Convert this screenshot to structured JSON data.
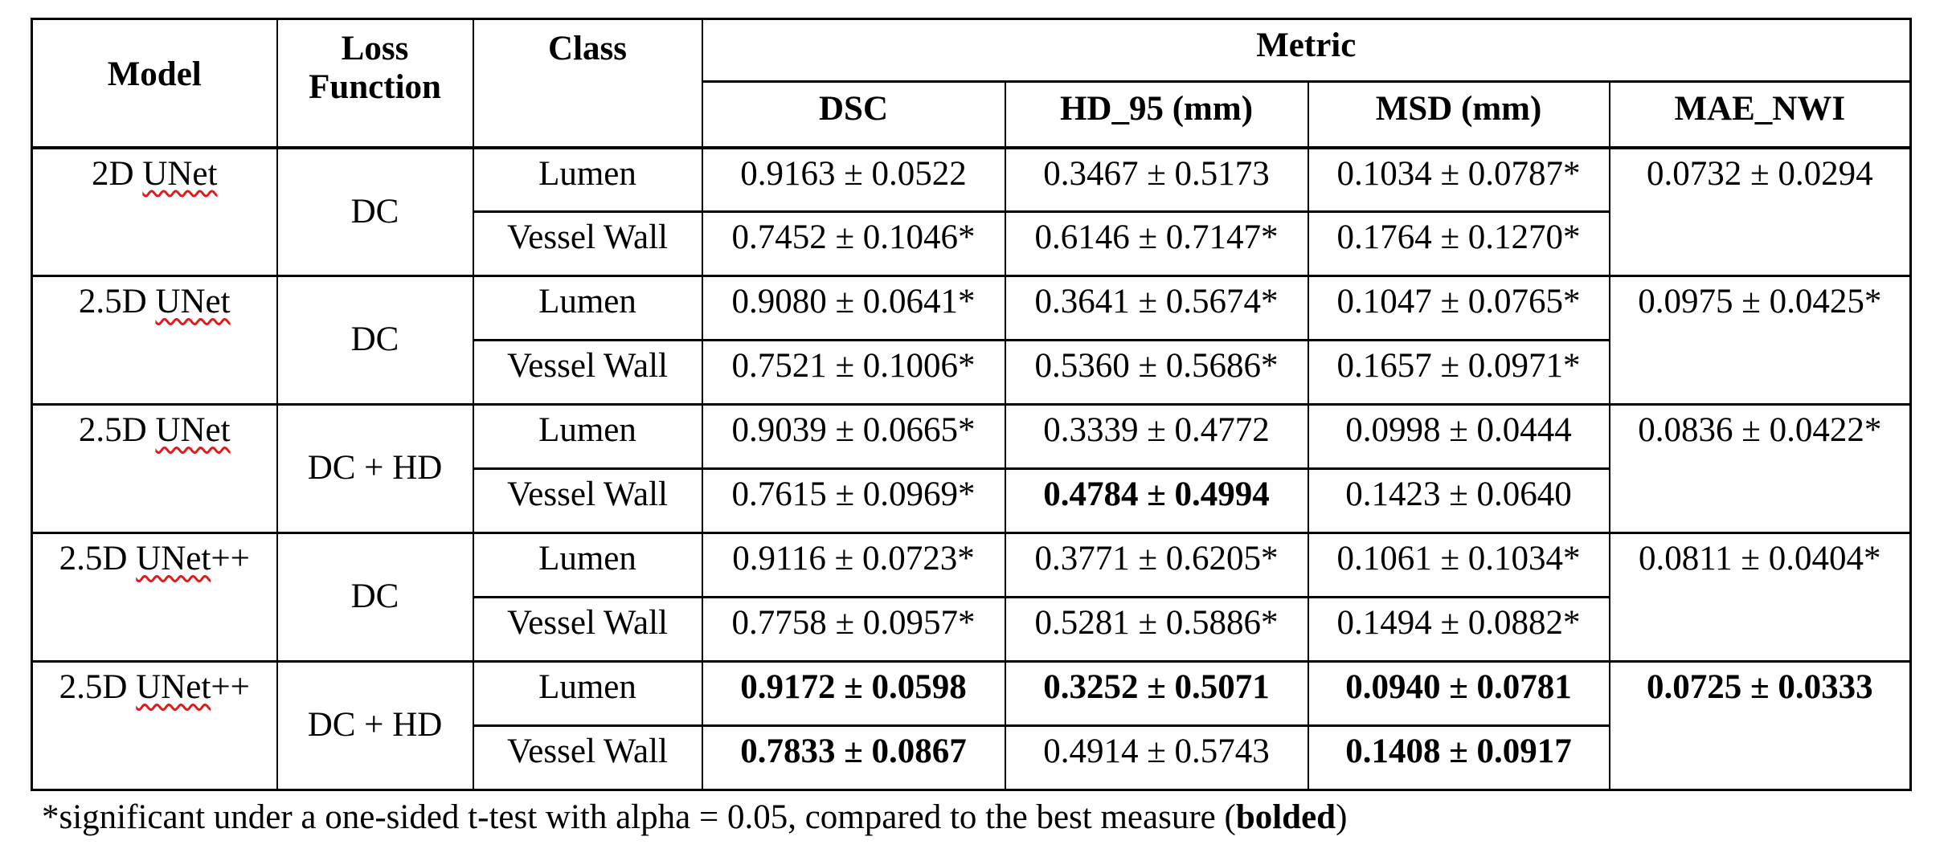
{
  "header": {
    "model": "Model",
    "loss_function": "Loss Function",
    "class": "Class",
    "metric": "Metric",
    "dsc": "DSC",
    "hd95": "HD_95 (mm)",
    "msd": "MSD (mm)",
    "mae_nwi": "MAE_NWI"
  },
  "spellcheck_color": "#e01b1b",
  "groups": [
    {
      "model_prefix": "2D ",
      "model_word": "UNet",
      "model_suffix": "",
      "loss": "DC",
      "mae": {
        "text": "0.0732 ± 0.0294",
        "bold": false
      },
      "rows": [
        {
          "class": "Lumen",
          "dsc": {
            "text": "0.9163 ± 0.0522",
            "bold": false
          },
          "hd": {
            "text": "0.3467 ± 0.5173",
            "bold": false
          },
          "msd": {
            "text": "0.1034 ± 0.0787*",
            "bold": false
          }
        },
        {
          "class": "Vessel Wall",
          "dsc": {
            "text": "0.7452 ± 0.1046*",
            "bold": false
          },
          "hd": {
            "text": "0.6146 ± 0.7147*",
            "bold": false
          },
          "msd": {
            "text": "0.1764 ± 0.1270*",
            "bold": false
          }
        }
      ]
    },
    {
      "model_prefix": "2.5D ",
      "model_word": "UNet",
      "model_suffix": "",
      "loss": "DC",
      "mae": {
        "text": "0.0975 ± 0.0425*",
        "bold": false
      },
      "rows": [
        {
          "class": "Lumen",
          "dsc": {
            "text": "0.9080 ± 0.0641*",
            "bold": false
          },
          "hd": {
            "text": "0.3641 ± 0.5674*",
            "bold": false
          },
          "msd": {
            "text": "0.1047 ± 0.0765*",
            "bold": false
          }
        },
        {
          "class": "Vessel Wall",
          "dsc": {
            "text": "0.7521 ± 0.1006*",
            "bold": false
          },
          "hd": {
            "text": "0.5360 ± 0.5686*",
            "bold": false
          },
          "msd": {
            "text": "0.1657 ± 0.0971*",
            "bold": false
          }
        }
      ]
    },
    {
      "model_prefix": "2.5D ",
      "model_word": "UNet",
      "model_suffix": "",
      "loss": "DC + HD",
      "mae": {
        "text": "0.0836 ± 0.0422*",
        "bold": false
      },
      "rows": [
        {
          "class": "Lumen",
          "dsc": {
            "text": "0.9039 ± 0.0665*",
            "bold": false
          },
          "hd": {
            "text": "0.3339 ± 0.4772",
            "bold": false
          },
          "msd": {
            "text": "0.0998 ± 0.0444",
            "bold": false
          }
        },
        {
          "class": "Vessel Wall",
          "dsc": {
            "text": "0.7615 ± 0.0969*",
            "bold": false
          },
          "hd": {
            "text": "0.4784 ± 0.4994",
            "bold": true
          },
          "msd": {
            "text": "0.1423 ± 0.0640",
            "bold": false
          }
        }
      ]
    },
    {
      "model_prefix": "2.5D ",
      "model_word": "UNet",
      "model_suffix": "++",
      "loss": "DC",
      "mae": {
        "text": "0.0811 ± 0.0404*",
        "bold": false
      },
      "rows": [
        {
          "class": "Lumen",
          "dsc": {
            "text": "0.9116 ± 0.0723*",
            "bold": false
          },
          "hd": {
            "text": "0.3771 ± 0.6205*",
            "bold": false
          },
          "msd": {
            "text": "0.1061 ± 0.1034*",
            "bold": false
          }
        },
        {
          "class": "Vessel Wall",
          "dsc": {
            "text": "0.7758 ± 0.0957*",
            "bold": false
          },
          "hd": {
            "text": "0.5281 ± 0.5886*",
            "bold": false
          },
          "msd": {
            "text": "0.1494 ± 0.0882*",
            "bold": false
          }
        }
      ]
    },
    {
      "model_prefix": "2.5D ",
      "model_word": "UNet",
      "model_suffix": "++",
      "loss": "DC + HD",
      "mae": {
        "text": "0.0725 ± 0.0333",
        "bold": true
      },
      "rows": [
        {
          "class": "Lumen",
          "dsc": {
            "text": "0.9172 ± 0.0598",
            "bold": true
          },
          "hd": {
            "text": "0.3252 ± 0.5071",
            "bold": true
          },
          "msd": {
            "text": "0.0940 ± 0.0781",
            "bold": true
          }
        },
        {
          "class": "Vessel Wall",
          "dsc": {
            "text": "0.7833 ± 0.0867",
            "bold": true
          },
          "hd": {
            "text": "0.4914 ± 0.5743",
            "bold": false
          },
          "msd": {
            "text": "0.1408 ± 0.0917",
            "bold": true
          }
        }
      ]
    }
  ],
  "footnote": {
    "pre": "*significant under a one-sided t-test with alpha = 0.05, compared to the best measure (",
    "bold_word": "bolded",
    "post": ")"
  }
}
